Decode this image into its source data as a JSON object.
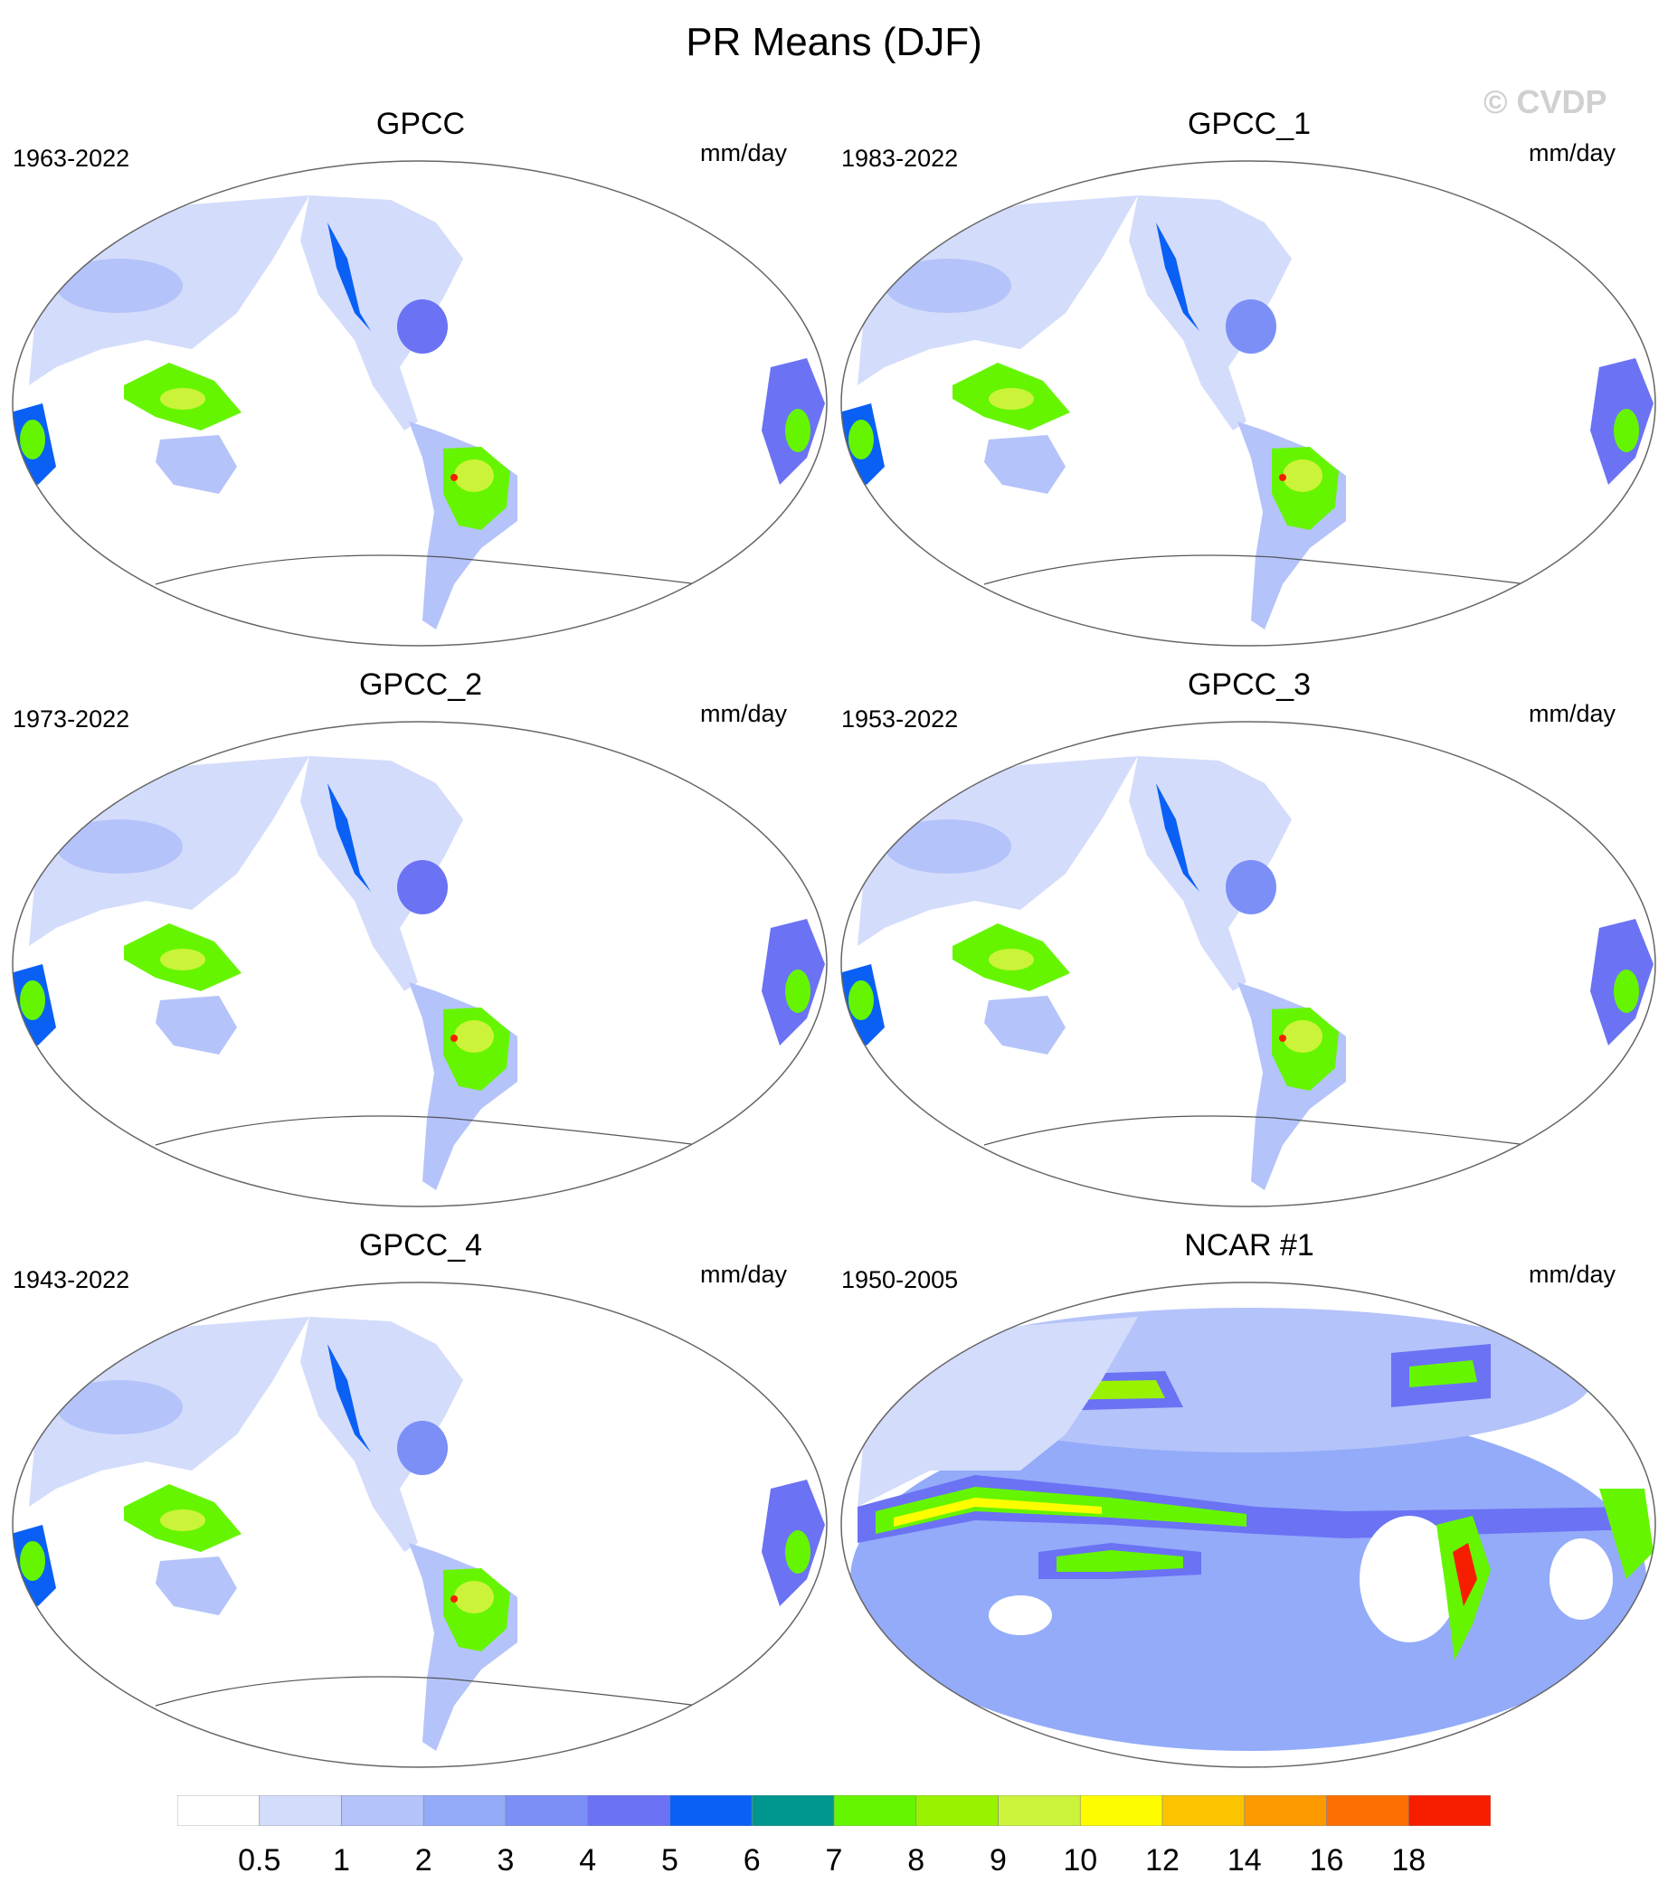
{
  "title": "PR Means (DJF)",
  "watermark": "© CVDP",
  "units": "mm/day",
  "panels": [
    {
      "title": "GPCC",
      "period": "1963-2022",
      "kind": "obs"
    },
    {
      "title": "GPCC_1",
      "period": "1983-2022",
      "kind": "obs"
    },
    {
      "title": "GPCC_2",
      "period": "1973-2022",
      "kind": "obs"
    },
    {
      "title": "GPCC_3",
      "period": "1953-2022",
      "kind": "obs"
    },
    {
      "title": "GPCC_4",
      "period": "1943-2022",
      "kind": "obs"
    },
    {
      "title": "NCAR #1",
      "period": "1950-2005",
      "kind": "model"
    }
  ],
  "colorbar": {
    "labels": [
      "0.5",
      "1",
      "2",
      "3",
      "4",
      "5",
      "6",
      "7",
      "8",
      "9",
      "10",
      "12",
      "14",
      "16",
      "18"
    ],
    "colors": [
      "#ffffff",
      "#d4dcfb",
      "#b4c3fa",
      "#93abf9",
      "#7b8ff6",
      "#6b72f4",
      "#0a60f5",
      "#009690",
      "#66f500",
      "#99f300",
      "#cbf33a",
      "#fdfd00",
      "#fcc300",
      "#fc9a00",
      "#fc6e00",
      "#f71e00"
    ]
  }
}
